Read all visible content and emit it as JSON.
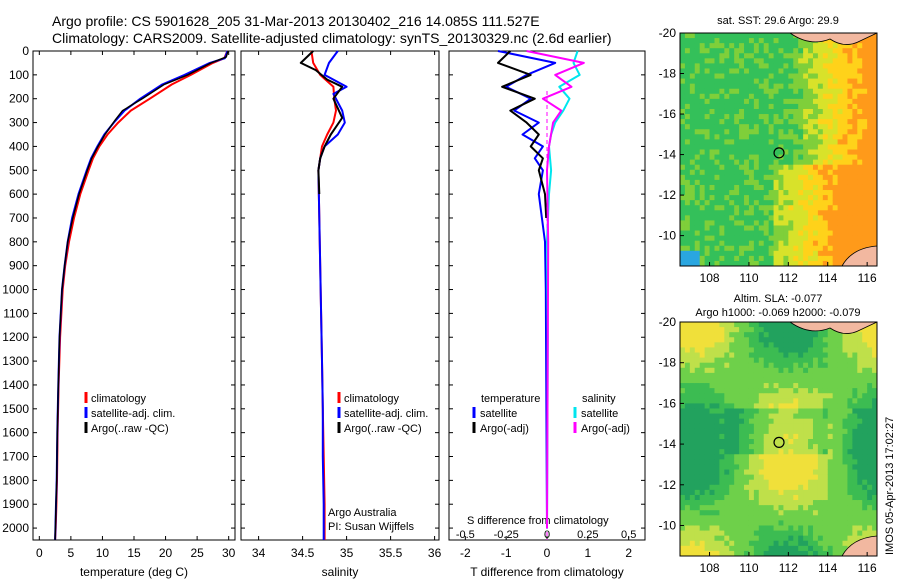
{
  "header": {
    "line1": "Argo profile: CS 5901628_205 31-Mar-2013 20130402_216 14.085S 111.527E",
    "line2": "Climatology: CARS2009. Satellite-adjusted climatology: synTS_20130329.nc (2.6d earlier)"
  },
  "side_label": "IMOS 05-Apr-2013 17:02:27",
  "colors": {
    "red": "#ff0000",
    "blue": "#0000ff",
    "black": "#000000",
    "cyan": "#00e5ee",
    "magenta": "#ff00ff"
  },
  "chart_data": [
    {
      "type": "line",
      "panel": "temperature",
      "xlabel": "temperature (deg C)",
      "ylabel": "",
      "xlim": [
        -1,
        31
      ],
      "ylim": [
        2050,
        0
      ],
      "xticks": [
        0,
        5,
        10,
        15,
        20,
        25,
        30
      ],
      "yticks": [
        0,
        100,
        200,
        300,
        400,
        500,
        600,
        700,
        800,
        900,
        1000,
        1100,
        1200,
        1300,
        1400,
        1500,
        1600,
        1700,
        1800,
        1900,
        2000
      ],
      "legend": [
        "climatology",
        "satellite-adj. clim.",
        "Argo(..raw -QC)"
      ],
      "series": [
        {
          "name": "climatology",
          "color": "red",
          "x": [
            29.8,
            29.3,
            27.5,
            24,
            21,
            17.5,
            14.5,
            12.5,
            10.8,
            9.5,
            8.5,
            7.8,
            6.5,
            5.5,
            4.7,
            4.1,
            3.7,
            3.3,
            3.05,
            2.9,
            2.8,
            2.7,
            2.6,
            2.5
          ],
          "y": [
            0,
            30,
            50,
            100,
            140,
            200,
            250,
            300,
            350,
            400,
            450,
            500,
            600,
            700,
            800,
            900,
            1000,
            1200,
            1400,
            1600,
            1800,
            1900,
            2000,
            2050
          ]
        },
        {
          "name": "satellite-adj. clim.",
          "color": "blue",
          "x": [
            29.8,
            29.4,
            27,
            23,
            19.5,
            16,
            13.5,
            11.8,
            10.3,
            9.2,
            8.2,
            7.5,
            6.2,
            5.2,
            4.5,
            4.0,
            3.6,
            3.2,
            3.0,
            2.85,
            2.75,
            2.65,
            2.55,
            2.5
          ],
          "y": [
            0,
            30,
            50,
            100,
            140,
            200,
            250,
            300,
            350,
            400,
            450,
            500,
            600,
            700,
            800,
            900,
            1000,
            1200,
            1400,
            1600,
            1800,
            1900,
            2000,
            2050
          ]
        },
        {
          "name": "Argo(..raw -QC)",
          "color": "black",
          "x": [
            29.9,
            29.6,
            27.2,
            23.5,
            19.8,
            16.3,
            13.2,
            12.0,
            10.4,
            9.3,
            8.3,
            7.6,
            6.3,
            5.3,
            4.5,
            4.0,
            3.6,
            3.2,
            3.0,
            2.85,
            2.75,
            2.65,
            2.55,
            2.5
          ],
          "y": [
            0,
            25,
            50,
            100,
            140,
            200,
            250,
            290,
            350,
            400,
            450,
            500,
            600,
            700,
            800,
            900,
            1000,
            1200,
            1400,
            1600,
            1800,
            1900,
            2000,
            2050
          ]
        }
      ]
    },
    {
      "type": "line",
      "panel": "salinity",
      "xlabel": "salinity",
      "ylabel": "",
      "xlim": [
        33.8,
        36.05
      ],
      "ylim": [
        2050,
        0
      ],
      "xticks": [
        34,
        34.5,
        35,
        35.5,
        36
      ],
      "legend": [
        "climatology",
        "satellite-adj. clim.",
        "Argo(..raw -QC)"
      ],
      "annotation": [
        "Argo Australia",
        "PI: Susan Wijffels"
      ],
      "series": [
        {
          "name": "climatology",
          "color": "red",
          "x": [
            34.6,
            34.62,
            34.7,
            34.85,
            34.86,
            34.88,
            34.85,
            34.78,
            34.72,
            34.7,
            34.68,
            34.69,
            34.7,
            34.71,
            34.72,
            34.73,
            34.74,
            34.75,
            34.75,
            34.75
          ],
          "y": [
            0,
            50,
            100,
            150,
            200,
            250,
            300,
            350,
            400,
            450,
            500,
            700,
            900,
            1100,
            1300,
            1500,
            1700,
            1900,
            2000,
            2050
          ]
        },
        {
          "name": "satellite-adj. clim.",
          "color": "blue",
          "x": [
            34.9,
            34.8,
            34.75,
            35.0,
            34.85,
            34.95,
            34.98,
            34.9,
            34.75,
            34.7,
            34.68,
            34.69,
            34.7,
            34.71,
            34.72,
            34.73,
            34.73,
            34.74,
            34.74,
            34.74
          ],
          "y": [
            0,
            50,
            100,
            150,
            180,
            250,
            300,
            350,
            400,
            450,
            500,
            700,
            900,
            1100,
            1300,
            1500,
            1700,
            1900,
            2000,
            2050
          ]
        },
        {
          "name": "Argo(..raw -QC)",
          "color": "black",
          "x": [
            34.62,
            34.48,
            34.65,
            34.78,
            34.95,
            34.85,
            34.95,
            34.82,
            34.75,
            34.7,
            34.68,
            34.69
          ],
          "y": [
            0,
            50,
            80,
            120,
            150,
            200,
            280,
            350,
            400,
            450,
            500,
            600
          ]
        }
      ]
    },
    {
      "type": "line",
      "panel": "difference",
      "xlabel": "T difference from climatology",
      "xlabel_top": "S difference from climatology",
      "ylabel": "",
      "xlim": [
        -2.4,
        2.4
      ],
      "ylim": [
        2050,
        0
      ],
      "xticks": [
        -2,
        -1,
        0,
        1,
        2
      ],
      "xticks_top": [
        "-0.5",
        "-0.25",
        "0",
        "0.25",
        "0.5"
      ],
      "legend_left_title": "temperature",
      "legend_right_title": "salinity",
      "legend_left": [
        "satellite",
        "Argo(-adj)"
      ],
      "legend_right": [
        "satellite",
        "Argo(-adj)"
      ],
      "series": [
        {
          "name": "satellite",
          "quantity": "temperature",
          "color": "blue",
          "x": [
            -1.2,
            0.2,
            -0.5,
            -1.0,
            -0.4,
            -0.8,
            -0.2,
            -0.6,
            -0.1,
            -0.3,
            -0.1,
            -0.2,
            -0.05,
            -0.03,
            0
          ],
          "y": [
            0,
            50,
            100,
            150,
            200,
            250,
            300,
            350,
            400,
            450,
            500,
            600,
            800,
            1000,
            2000
          ]
        },
        {
          "name": "Argo(-adj)",
          "quantity": "temperature",
          "color": "black",
          "x": [
            -0.9,
            -1.2,
            -0.4,
            -1.1,
            -0.3,
            -0.9,
            -0.5,
            -0.2,
            -0.4,
            -0.1,
            -0.2,
            -0.05,
            -0.02
          ],
          "y": [
            0,
            50,
            100,
            150,
            200,
            250,
            300,
            350,
            400,
            450,
            500,
            600,
            700
          ]
        },
        {
          "name": "satellite",
          "quantity": "salinity",
          "color": "cyan",
          "x": [
            0.75,
            0.65,
            0.8,
            0.3,
            0.55,
            0.4,
            0.2,
            0.1,
            0.05,
            0.1,
            0.05,
            0.0,
            0.02,
            0.0
          ],
          "y": [
            0,
            50,
            100,
            150,
            200,
            250,
            300,
            350,
            400,
            500,
            600,
            800,
            1200,
            2000
          ]
        },
        {
          "name": "Argo(-adj)",
          "quantity": "salinity",
          "color": "magenta",
          "x": [
            -0.5,
            0.9,
            0.2,
            0.6,
            -0.1,
            0.35,
            0.15,
            0.05,
            0.0,
            0.03,
            0.0
          ],
          "y": [
            0,
            50,
            100,
            150,
            200,
            250,
            300,
            400,
            500,
            800,
            2000
          ]
        }
      ]
    },
    {
      "type": "heatmap",
      "panel": "sst-map",
      "title": "sat. SST: 29.6  Argo: 29.9",
      "xlim": [
        106.5,
        116.5
      ],
      "ylim": [
        -20,
        -8.5
      ],
      "xticks": [
        108,
        110,
        112,
        114,
        116
      ],
      "yticks": [
        -10,
        -12,
        -14,
        -16,
        -18,
        -20
      ],
      "marker": {
        "lon": 111.527,
        "lat": -14.085
      }
    },
    {
      "type": "heatmap",
      "panel": "sla-map",
      "title": "Altim. SLA: -0.077",
      "subtitle": "Argo h1000: -0.069 h2000: -0.079",
      "xlim": [
        106.5,
        116.5
      ],
      "ylim": [
        -20,
        -8.5
      ],
      "xticks": [
        108,
        110,
        112,
        114,
        116
      ],
      "yticks": [
        -10,
        -12,
        -14,
        -16,
        -18,
        -20
      ],
      "marker": {
        "lon": 111.527,
        "lat": -14.085
      }
    }
  ]
}
